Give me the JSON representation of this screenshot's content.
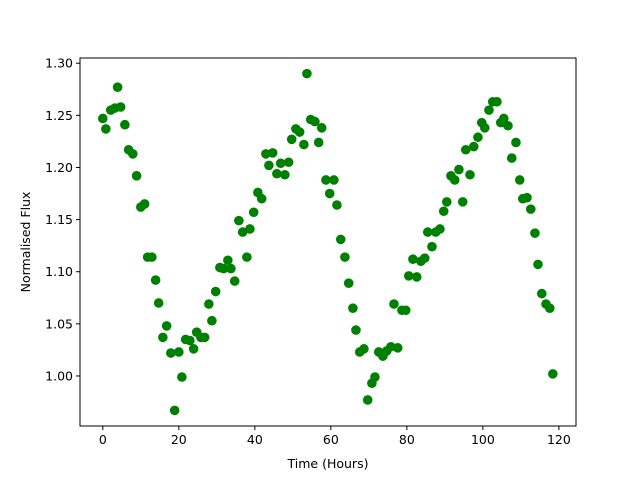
{
  "chart_data": {
    "type": "scatter",
    "xlabel": "Time (Hours)",
    "ylabel": "Normalised Flux",
    "color": "green",
    "xlim": [
      -6,
      124.5
    ],
    "ylim": [
      0.952,
      1.305
    ],
    "xticks": [
      0,
      20,
      40,
      60,
      80,
      100,
      120
    ],
    "yticks": [
      {
        "value": 1.0,
        "label": "1.00"
      },
      {
        "value": 1.05,
        "label": "1.05"
      },
      {
        "value": 1.1,
        "label": "1.10"
      },
      {
        "value": 1.15,
        "label": "1.15"
      },
      {
        "value": 1.2,
        "label": "1.20"
      },
      {
        "value": 1.25,
        "label": "1.25"
      },
      {
        "value": 1.3,
        "label": "1.30"
      }
    ],
    "x": [
      0,
      0.8,
      2.1,
      3.2,
      3.9,
      4.7,
      5.8,
      6.8,
      7.9,
      8.9,
      10,
      11,
      11.8,
      12.9,
      13.9,
      14.7,
      15.8,
      16.8,
      17.9,
      18.9,
      20,
      20.8,
      21.8,
      22.9,
      23.9,
      24.7,
      25.8,
      26.8,
      27.9,
      28.7,
      29.7,
      30.8,
      31.8,
      32.9,
      33.7,
      34.7,
      35.8,
      36.8,
      37.9,
      38.7,
      39.7,
      40.8,
      41.8,
      42.9,
      43.7,
      44.7,
      45.8,
      46.8,
      47.9,
      48.9,
      49.7,
      50.8,
      51.8,
      52.9,
      53.7,
      54.7,
      55.8,
      56.8,
      57.6,
      58.7,
      59.7,
      60.8,
      61.6,
      62.6,
      63.7,
      64.7,
      65.8,
      66.6,
      67.6,
      68.7,
      69.7,
      70.8,
      71.6,
      72.6,
      73.7,
      74.7,
      75.8,
      76.6,
      77.6,
      78.7,
      79.7,
      80.5,
      81.6,
      82.6,
      83.7,
      84.7,
      85.5,
      86.6,
      87.6,
      88.7,
      89.7,
      90.5,
      91.6,
      92.6,
      93.7,
      94.7,
      95.5,
      96.6,
      97.6,
      98.7,
      99.7,
      100.5,
      101.6,
      102.6,
      103.7,
      104.7,
      105.5,
      106.6,
      107.6,
      108.7,
      109.7,
      110.5,
      111.6,
      112.6,
      113.7,
      114.5,
      115.5,
      116.6,
      117.6,
      118.4
    ],
    "values": [
      1.247,
      1.237,
      1.255,
      1.257,
      1.277,
      1.258,
      1.241,
      1.217,
      1.213,
      1.192,
      1.162,
      1.165,
      1.114,
      1.114,
      1.092,
      1.07,
      1.037,
      1.048,
      1.022,
      0.967,
      1.023,
      0.999,
      1.035,
      1.034,
      1.026,
      1.042,
      1.037,
      1.037,
      1.069,
      1.053,
      1.081,
      1.104,
      1.103,
      1.111,
      1.103,
      1.091,
      1.149,
      1.138,
      1.114,
      1.141,
      1.157,
      1.176,
      1.17,
      1.213,
      1.202,
      1.214,
      1.194,
      1.204,
      1.193,
      1.205,
      1.227,
      1.237,
      1.234,
      1.222,
      1.29,
      1.246,
      1.244,
      1.224,
      1.238,
      1.188,
      1.175,
      1.188,
      1.164,
      1.131,
      1.114,
      1.089,
      1.065,
      1.044,
      1.023,
      1.026,
      0.977,
      0.993,
      0.999,
      1.023,
      1.019,
      1.024,
      1.028,
      1.069,
      1.027,
      1.063,
      1.063,
      1.096,
      1.112,
      1.095,
      1.11,
      1.113,
      1.138,
      1.124,
      1.138,
      1.141,
      1.158,
      1.167,
      1.192,
      1.188,
      1.198,
      1.167,
      1.217,
      1.193,
      1.22,
      1.229,
      1.243,
      1.238,
      1.255,
      1.263,
      1.263,
      1.243,
      1.247,
      1.24,
      1.209,
      1.224,
      1.188,
      1.17,
      1.171,
      1.16,
      1.137,
      1.107,
      1.079,
      1.069,
      1.065,
      1.002
    ]
  }
}
